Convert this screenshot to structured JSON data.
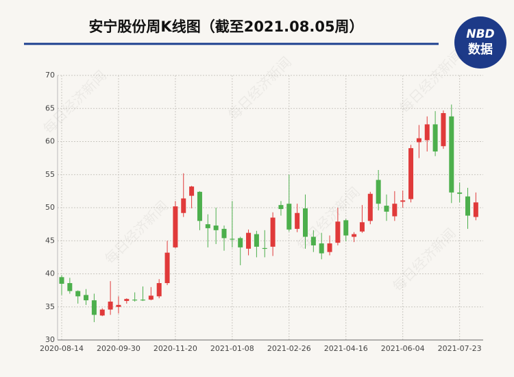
{
  "chart_data": {
    "type": "candlestick",
    "title": "安宁股份周K线图（截至2021.08.05周）",
    "categories": [
      "2020-08-14",
      null,
      null,
      null,
      null,
      null,
      null,
      "2020-09-30",
      null,
      null,
      null,
      null,
      null,
      null,
      "2020-11-20",
      null,
      null,
      null,
      null,
      null,
      null,
      "2021-01-08",
      null,
      null,
      null,
      null,
      null,
      null,
      "2021-02-26",
      null,
      null,
      null,
      null,
      null,
      null,
      "2021-04-16",
      null,
      null,
      null,
      null,
      null,
      null,
      "2021-06-04",
      null,
      null,
      null,
      null,
      null,
      null,
      "2021-07-23",
      null,
      null
    ],
    "open": [
      39.5,
      38.6,
      37.4,
      36.8,
      36.0,
      33.7,
      34.6,
      35.0,
      35.9,
      36.1,
      36.1,
      36.1,
      36.6,
      38.6,
      44.0,
      49.2,
      51.8,
      52.4,
      47.5,
      47.3,
      46.8,
      45.3,
      45.4,
      43.8,
      46.0,
      43.9,
      44.1,
      50.4,
      50.6,
      46.8,
      49.9,
      45.6,
      44.6,
      43.3,
      44.7,
      48.1,
      45.6,
      46.4,
      48.0,
      54.2,
      50.3,
      48.7,
      50.9,
      51.3,
      59.9,
      60.2,
      62.6,
      59.3,
      63.8,
      52.3,
      51.7,
      48.6
    ],
    "close": [
      38.5,
      37.4,
      36.6,
      36.0,
      33.8,
      34.6,
      35.8,
      35.3,
      36.2,
      36.0,
      36.0,
      36.7,
      38.6,
      43.2,
      50.2,
      51.4,
      53.2,
      48.0,
      46.9,
      46.6,
      45.4,
      45.2,
      44.0,
      46.2,
      44.1,
      43.8,
      48.5,
      49.8,
      46.7,
      49.2,
      45.6,
      44.3,
      43.1,
      44.6,
      47.9,
      45.8,
      46.0,
      47.8,
      52.1,
      50.6,
      49.4,
      50.6,
      51.1,
      59.0,
      60.5,
      62.6,
      58.5,
      64.3,
      52.3,
      52.1,
      48.8,
      50.8
    ],
    "high": [
      39.8,
      39.4,
      37.5,
      37.7,
      37.0,
      34.8,
      38.9,
      36.6,
      36.3,
      37.2,
      38.1,
      38.0,
      39.2,
      45.0,
      51.0,
      55.2,
      53.3,
      52.5,
      49.0,
      50.0,
      47.3,
      51.0,
      45.6,
      46.7,
      46.5,
      46.6,
      49.3,
      51.0,
      55.0,
      50.6,
      52.0,
      46.6,
      46.2,
      45.8,
      50.0,
      48.3,
      46.3,
      50.4,
      52.4,
      55.7,
      52.0,
      52.5,
      52.6,
      59.5,
      62.5,
      63.8,
      64.6,
      64.7,
      65.6,
      53.8,
      53.0,
      52.3
    ],
    "low": [
      36.8,
      37.0,
      35.5,
      35.3,
      32.7,
      33.6,
      33.8,
      34.0,
      35.5,
      35.8,
      35.9,
      36.0,
      36.3,
      38.3,
      43.9,
      48.6,
      49.9,
      46.6,
      44.0,
      44.5,
      43.5,
      44.0,
      41.3,
      42.8,
      42.5,
      42.5,
      42.7,
      48.8,
      46.4,
      46.3,
      43.8,
      43.3,
      42.2,
      42.8,
      44.3,
      44.9,
      44.8,
      46.2,
      47.5,
      49.6,
      48.0,
      48.0,
      50.0,
      50.8,
      57.5,
      58.5,
      57.8,
      58.9,
      50.7,
      50.8,
      46.8,
      48.1
    ],
    "up_color": "#e03a3a",
    "down_color": "#4caf4c",
    "ylim": [
      30,
      70
    ],
    "yticks": [
      30,
      35,
      40,
      45,
      50,
      55,
      60,
      65,
      70
    ],
    "grid": true
  },
  "watermark": "每日经济新闻",
  "logo": {
    "brand": "NBD",
    "label": "数据"
  }
}
